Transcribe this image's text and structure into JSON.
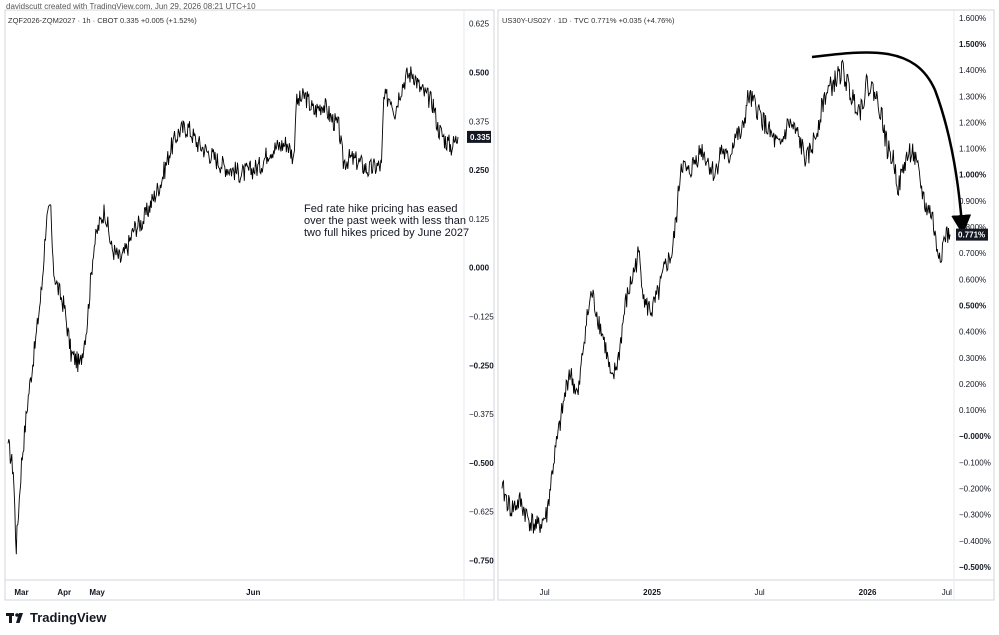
{
  "header": {
    "credit": "davidscutt created with TradingView.com, Jun 29, 2026 08:21 UTC+10"
  },
  "footer": {
    "brand": "TradingView"
  },
  "chart_data": [
    {
      "type": "line",
      "legend": "ZQF2026-ZQM2027 · 1h · CBOT  0.335  +0.005 (+1.52%)",
      "annotation": [
        "Fed rate hike pricing has eased",
        "over the past week with less than",
        "two full hikes priced by June 2027"
      ],
      "last_value_label": "0.335",
      "y_ticks": [
        "0.625",
        "0.500",
        "0.375",
        "0.250",
        "0.125",
        "0.000",
        "−0.125",
        "−0.250",
        "−0.375",
        "−0.500",
        "−0.625",
        "−0.750"
      ],
      "y_tick_values": [
        0.625,
        0.5,
        0.375,
        0.25,
        0.125,
        0.0,
        -0.125,
        -0.25,
        -0.375,
        -0.5,
        -0.625,
        -0.75
      ],
      "bold_ticks": [
        "0.500",
        "0.335",
        "0.250",
        "0.000",
        "−0.250",
        "−0.500",
        "−0.750"
      ],
      "ylim": [
        -0.8,
        0.66
      ],
      "x_ticks": [
        {
          "label": "Mar",
          "t": 0.03,
          "bold": true
        },
        {
          "label": "Apr",
          "t": 0.125,
          "bold": true
        },
        {
          "label": "May",
          "t": 0.198,
          "bold": true
        },
        {
          "label": "Jun",
          "t": 0.545,
          "bold": true
        }
      ],
      "anchors": [
        [
          0.0,
          -0.45
        ],
        [
          0.012,
          -0.52
        ],
        [
          0.018,
          -0.72
        ],
        [
          0.03,
          -0.5
        ],
        [
          0.045,
          -0.33
        ],
        [
          0.06,
          -0.2
        ],
        [
          0.075,
          -0.05
        ],
        [
          0.085,
          0.12
        ],
        [
          0.095,
          0.15
        ],
        [
          0.1,
          0.0
        ],
        [
          0.11,
          -0.05
        ],
        [
          0.125,
          -0.1
        ],
        [
          0.14,
          -0.22
        ],
        [
          0.16,
          -0.25
        ],
        [
          0.175,
          -0.15
        ],
        [
          0.19,
          0.05
        ],
        [
          0.2,
          0.1
        ],
        [
          0.215,
          0.15
        ],
        [
          0.23,
          0.05
        ],
        [
          0.25,
          0.02
        ],
        [
          0.265,
          0.05
        ],
        [
          0.28,
          0.1
        ],
        [
          0.3,
          0.12
        ],
        [
          0.32,
          0.17
        ],
        [
          0.34,
          0.22
        ],
        [
          0.36,
          0.3
        ],
        [
          0.38,
          0.35
        ],
        [
          0.4,
          0.36
        ],
        [
          0.42,
          0.32
        ],
        [
          0.44,
          0.3
        ],
        [
          0.46,
          0.28
        ],
        [
          0.48,
          0.26
        ],
        [
          0.5,
          0.25
        ],
        [
          0.52,
          0.24
        ],
        [
          0.54,
          0.25
        ],
        [
          0.56,
          0.26
        ],
        [
          0.58,
          0.3
        ],
        [
          0.6,
          0.31
        ],
        [
          0.62,
          0.32
        ],
        [
          0.635,
          0.28
        ],
        [
          0.64,
          0.42
        ],
        [
          0.66,
          0.44
        ],
        [
          0.68,
          0.4
        ],
        [
          0.7,
          0.42
        ],
        [
          0.72,
          0.38
        ],
        [
          0.735,
          0.36
        ],
        [
          0.745,
          0.27
        ],
        [
          0.76,
          0.28
        ],
        [
          0.78,
          0.27
        ],
        [
          0.8,
          0.25
        ],
        [
          0.82,
          0.26
        ],
        [
          0.83,
          0.26
        ],
        [
          0.835,
          0.43
        ],
        [
          0.85,
          0.44
        ],
        [
          0.86,
          0.4
        ],
        [
          0.87,
          0.45
        ],
        [
          0.885,
          0.49
        ],
        [
          0.9,
          0.5
        ],
        [
          0.915,
          0.46
        ],
        [
          0.93,
          0.44
        ],
        [
          0.945,
          0.42
        ],
        [
          0.955,
          0.36
        ],
        [
          0.97,
          0.33
        ],
        [
          0.985,
          0.31
        ],
        [
          1.0,
          0.335
        ]
      ]
    },
    {
      "type": "line",
      "legend": "US30Y-US02Y · 1D · TVC  0.771%  +0.035 (+4.76%)",
      "last_value_label": "0.771%",
      "y_ticks": [
        "1.600%",
        "1.500%",
        "1.400%",
        "1.300%",
        "1.200%",
        "1.100%",
        "1.000%",
        "0.900%",
        "0.800%",
        "0.700%",
        "0.600%",
        "0.500%",
        "0.400%",
        "0.300%",
        "0.200%",
        "0.100%",
        "−0.000%",
        "−0.100%",
        "−0.200%",
        "−0.300%",
        "−0.400%",
        "−0.500%"
      ],
      "y_tick_values": [
        1.6,
        1.5,
        1.4,
        1.3,
        1.2,
        1.1,
        1.0,
        0.9,
        0.8,
        0.7,
        0.6,
        0.5,
        0.4,
        0.3,
        0.2,
        0.1,
        0.0,
        -0.1,
        -0.2,
        -0.3,
        -0.4,
        -0.5
      ],
      "bold_ticks": [
        "1.500%",
        "1.000%",
        "0.771%",
        "0.500%",
        "−0.000%",
        "−0.500%"
      ],
      "ylim": [
        -0.55,
        1.63
      ],
      "x_ticks": [
        {
          "label": "Jul",
          "t": 0.095,
          "bold": false
        },
        {
          "label": "2025",
          "t": 0.335,
          "bold": true
        },
        {
          "label": "Jul",
          "t": 0.575,
          "bold": false
        },
        {
          "label": "2026",
          "t": 0.816,
          "bold": true
        },
        {
          "label": "Jul",
          "t": 0.993,
          "bold": false
        }
      ],
      "anchors": [
        [
          0.0,
          -0.2
        ],
        [
          0.02,
          -0.28
        ],
        [
          0.04,
          -0.25
        ],
        [
          0.06,
          -0.32
        ],
        [
          0.08,
          -0.35
        ],
        [
          0.1,
          -0.3
        ],
        [
          0.115,
          -0.1
        ],
        [
          0.13,
          0.05
        ],
        [
          0.15,
          0.25
        ],
        [
          0.17,
          0.15
        ],
        [
          0.185,
          0.4
        ],
        [
          0.2,
          0.55
        ],
        [
          0.215,
          0.45
        ],
        [
          0.23,
          0.35
        ],
        [
          0.245,
          0.2
        ],
        [
          0.26,
          0.3
        ],
        [
          0.275,
          0.5
        ],
        [
          0.29,
          0.6
        ],
        [
          0.305,
          0.7
        ],
        [
          0.32,
          0.5
        ],
        [
          0.335,
          0.48
        ],
        [
          0.35,
          0.55
        ],
        [
          0.365,
          0.65
        ],
        [
          0.38,
          0.7
        ],
        [
          0.39,
          0.85
        ],
        [
          0.4,
          1.05
        ],
        [
          0.415,
          1.0
        ],
        [
          0.43,
          1.05
        ],
        [
          0.445,
          1.1
        ],
        [
          0.46,
          1.05
        ],
        [
          0.475,
          1.0
        ],
        [
          0.49,
          1.1
        ],
        [
          0.505,
          1.05
        ],
        [
          0.52,
          1.15
        ],
        [
          0.535,
          1.15
        ],
        [
          0.55,
          1.3
        ],
        [
          0.57,
          1.25
        ],
        [
          0.585,
          1.2
        ],
        [
          0.6,
          1.15
        ],
        [
          0.62,
          1.1
        ],
        [
          0.64,
          1.2
        ],
        [
          0.66,
          1.15
        ],
        [
          0.68,
          1.05
        ],
        [
          0.7,
          1.15
        ],
        [
          0.72,
          1.3
        ],
        [
          0.74,
          1.35
        ],
        [
          0.76,
          1.4
        ],
        [
          0.78,
          1.3
        ],
        [
          0.8,
          1.25
        ],
        [
          0.815,
          1.35
        ],
        [
          0.83,
          1.32
        ],
        [
          0.845,
          1.25
        ],
        [
          0.86,
          1.1
        ],
        [
          0.875,
          1.05
        ],
        [
          0.885,
          0.95
        ],
        [
          0.9,
          1.05
        ],
        [
          0.915,
          1.1
        ],
        [
          0.93,
          1.0
        ],
        [
          0.945,
          0.88
        ],
        [
          0.96,
          0.85
        ],
        [
          0.97,
          0.72
        ],
        [
          0.98,
          0.7
        ],
        [
          0.99,
          0.77
        ],
        [
          1.0,
          0.771
        ]
      ]
    }
  ]
}
